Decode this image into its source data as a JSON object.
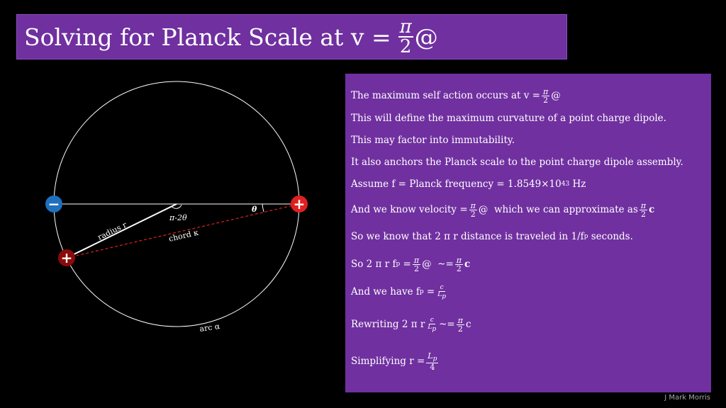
{
  "title": {
    "text": "Solving for Planck Scale at v =",
    "num": "π",
    "den": "2",
    "suffix": "@"
  },
  "diagram": {
    "left_charge_sign": "−",
    "right_charge_sign": "+",
    "lower_charge_sign": "+",
    "left_charge_color": "#1f6fbf",
    "right_charge_color": "#e02020",
    "lower_charge_color": "#8b0a0a",
    "center_angle_label": "π-2θ",
    "theta_label": "θ",
    "radius_label": "radius r",
    "chord_label": "chord κ",
    "arc_label": "arc α"
  },
  "panel": {
    "l1_pre": "The maximum self action occurs at v =",
    "l1_num": "π",
    "l1_den": "2",
    "l1_post": "@",
    "l2": "This will define the maximum curvature of a point charge dipole.",
    "l3": "This may factor into immutability.",
    "l4": "It also anchors the Planck scale to the point charge dipole assembly.",
    "l5_pre": "Assume f = Planck frequency = 1.8549×10",
    "l5_exp": "43",
    "l5_post": " Hz",
    "l6_pre": "And we know velocity =",
    "l6_num": "π",
    "l6_den": "2",
    "l6_mid": "@  which we can approximate as",
    "l6_num2": "π",
    "l6_den2": "2",
    "l6_post": "c",
    "l7_pre": "So we know that 2 π r distance is traveled in 1/f",
    "l7_sub": "p",
    "l7_post": " seconds.",
    "l8_pre": "So 2 π r f",
    "l8_sub": "p",
    "l8_eq": " =",
    "l8_num": "π",
    "l8_den": "2",
    "l8_mid": "@  ~=",
    "l8_num2": "π",
    "l8_den2": "2",
    "l8_post": "c",
    "l9_pre": "And we have f",
    "l9_sub": "p",
    "l9_eq": " =",
    "l9_num": "c",
    "l9_den": "L",
    "l9_den_sub": "p",
    "l10_pre": "Rewriting 2 π r",
    "l10_num": "c",
    "l10_den": "L",
    "l10_den_sub": "p",
    "l10_mid": "~=",
    "l10_num2": "π",
    "l10_den2": "2",
    "l10_post": "c",
    "l11_pre": "Simplifying r =",
    "l11_num": "L",
    "l11_num_sub": "p",
    "l11_den": "4"
  },
  "credit": "J Mark Morris"
}
